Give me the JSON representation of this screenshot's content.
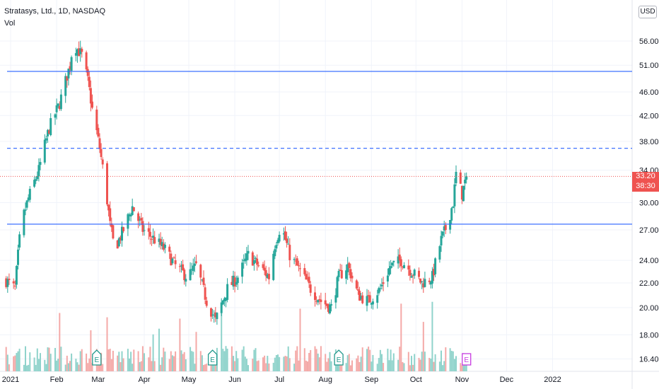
{
  "header": {
    "symbol": "Stratasys, Ltd., 1D, NASDAQ",
    "volume_label": "Vol"
  },
  "currency_button": "USD",
  "last_price_label": "33.20",
  "countdown_label": "38:30",
  "colors": {
    "up": "#26a69a",
    "down": "#ef5350",
    "vol_up": "#8fd3cb",
    "vol_down": "#f4a9a7",
    "hline": "#2962ff",
    "grid": "#f0f3fa"
  },
  "chart_data": {
    "type": "candlestick",
    "x_ticks": [
      "2021",
      "Feb",
      "Mar",
      "Apr",
      "May",
      "Jun",
      "Jul",
      "Aug",
      "Sep",
      "Oct",
      "Nov",
      "Dec",
      "2022"
    ],
    "y_ticks": [
      "16.40",
      "18.00",
      "20.00",
      "22.00",
      "24.00",
      "27.00",
      "30.00",
      "34.00",
      "38.00",
      "42.00",
      "46.00",
      "51.00",
      "56.00"
    ],
    "y_scale": "log",
    "price_lines": [
      {
        "value": 49.8,
        "style": "solid"
      },
      {
        "value": 37.0,
        "style": "dashed"
      },
      {
        "value": 27.6,
        "style": "solid"
      }
    ],
    "last_price": 33.2,
    "earnings_markers": [
      {
        "x": "Feb 28",
        "label": "E"
      },
      {
        "x": "May 17",
        "label": "E"
      },
      {
        "x": "Aug 10",
        "label": "E"
      },
      {
        "x": "Nov 4",
        "label": "E"
      }
    ],
    "close_path": [
      [
        "Dec 29",
        22.2
      ],
      [
        "Jan 4",
        21.5
      ],
      [
        "Jan 8",
        27.5
      ],
      [
        "Jan 13",
        30.5
      ],
      [
        "Jan 20",
        34.0
      ],
      [
        "Jan 27",
        40.0
      ],
      [
        "Feb 3",
        44.0
      ],
      [
        "Feb 10",
        51.0
      ],
      [
        "Feb 12",
        55.5
      ],
      [
        "Feb 18",
        53.0
      ],
      [
        "Feb 22",
        48.0
      ],
      [
        "Feb 25",
        43.0
      ],
      [
        "Mar 2",
        37.0
      ],
      [
        "Mar 5",
        33.0
      ],
      [
        "Mar 9",
        27.5
      ],
      [
        "Mar 12",
        25.0
      ],
      [
        "Mar 18",
        27.0
      ],
      [
        "Mar 24",
        29.5
      ],
      [
        "Mar 31",
        27.0
      ],
      [
        "Apr 8",
        26.0
      ],
      [
        "Apr 15",
        25.0
      ],
      [
        "Apr 22",
        23.5
      ],
      [
        "Apr 30",
        22.5
      ],
      [
        "May 6",
        23.5
      ],
      [
        "May 13",
        20.5
      ],
      [
        "May 19",
        19.0
      ],
      [
        "May 27",
        21.5
      ],
      [
        "Jun 3",
        22.5
      ],
      [
        "Jun 10",
        24.5
      ],
      [
        "Jun 17",
        23.5
      ],
      [
        "Jun 24",
        22.5
      ],
      [
        "Jun 28",
        25.5
      ],
      [
        "Jul 2",
        27.5
      ],
      [
        "Jul 8",
        24.5
      ],
      [
        "Jul 15",
        23.0
      ],
      [
        "Jul 22",
        21.5
      ],
      [
        "Jul 29",
        20.5
      ],
      [
        "Aug 5",
        20.0
      ],
      [
        "Aug 10",
        22.5
      ],
      [
        "Aug 16",
        23.5
      ],
      [
        "Aug 23",
        21.0
      ],
      [
        "Aug 30",
        20.5
      ],
      [
        "Sep 7",
        21.5
      ],
      [
        "Sep 14",
        23.5
      ],
      [
        "Sep 21",
        24.0
      ],
      [
        "Sep 28",
        23.0
      ],
      [
        "Oct 5",
        22.0
      ],
      [
        "Oct 12",
        22.5
      ],
      [
        "Oct 18",
        26.0
      ],
      [
        "Oct 22",
        27.5
      ],
      [
        "Oct 26",
        30.0
      ],
      [
        "Oct 28",
        33.5
      ],
      [
        "Nov 1",
        31.0
      ],
      [
        "Nov 4",
        33.2
      ]
    ]
  }
}
